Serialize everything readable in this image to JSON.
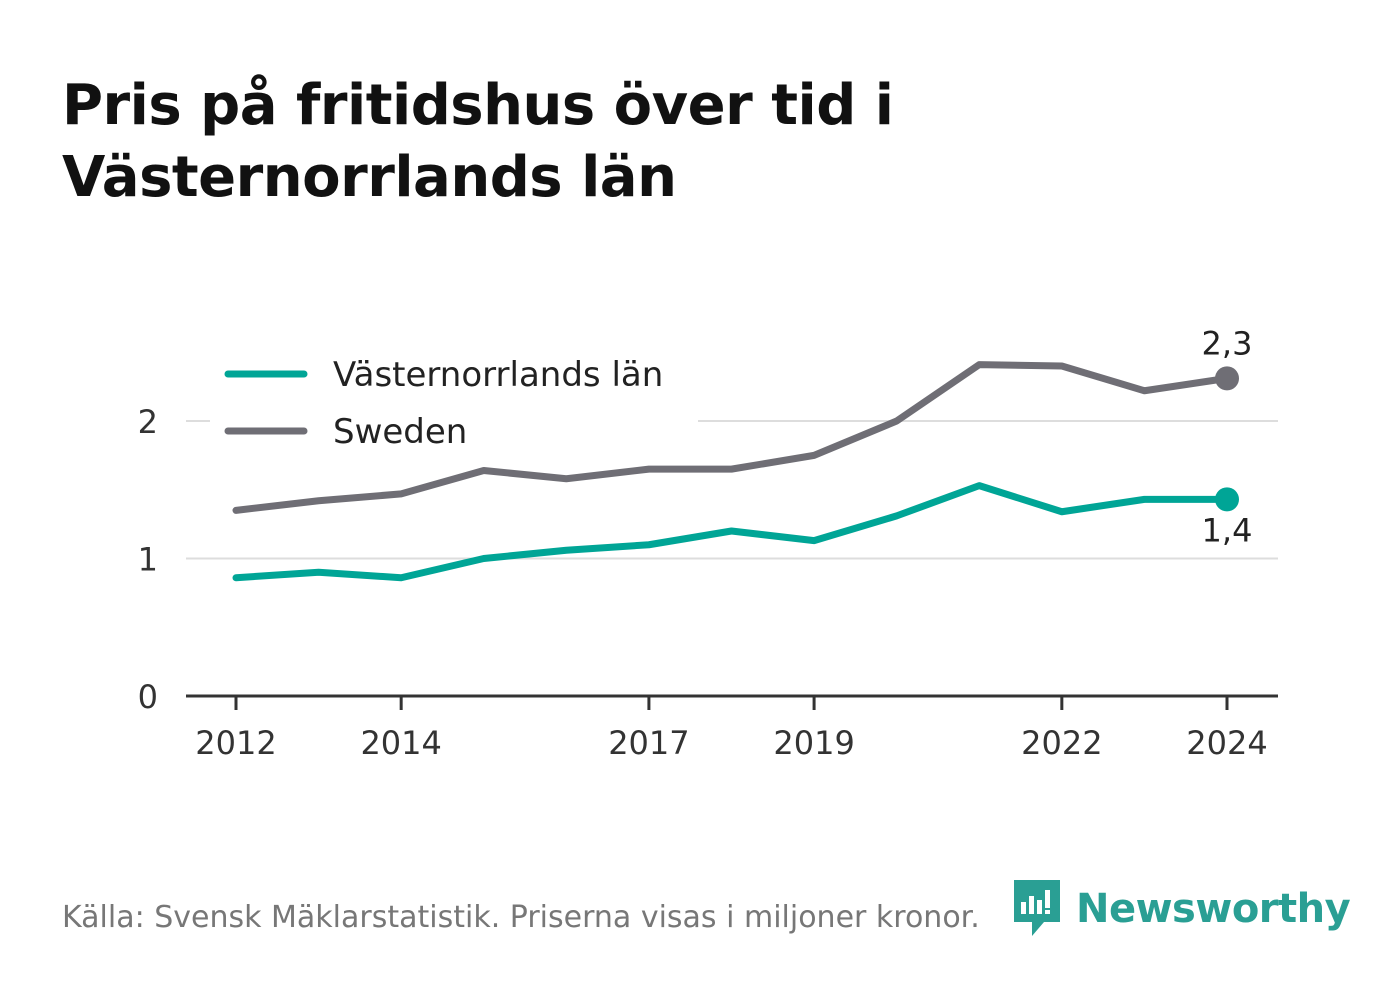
{
  "title": "Pris på fritidshus över tid i Västernorrlands län",
  "footer": {
    "source": "Källa: Svensk Mäklarstatistik. Priserna visas i miljoner kronor.",
    "brand": "Newsworthy"
  },
  "colors": {
    "vasternorrland": "#00a596",
    "sweden": "#6f6e75",
    "axis": "#333333",
    "grid": "#dddddd",
    "brand": "#2a9f94"
  },
  "icons": [
    "newsworthy-logo-icon"
  ],
  "chart_data": {
    "type": "line",
    "x": [
      2012,
      2013,
      2014,
      2015,
      2016,
      2017,
      2018,
      2019,
      2020,
      2021,
      2022,
      2023,
      2024
    ],
    "series": [
      {
        "name": "Västernorrlands län",
        "values": [
          0.86,
          0.9,
          0.86,
          1.0,
          1.06,
          1.1,
          1.2,
          1.13,
          1.31,
          1.53,
          1.34,
          1.43,
          1.43
        ],
        "end_label": "1,4"
      },
      {
        "name": "Sweden",
        "values": [
          1.35,
          1.42,
          1.47,
          1.64,
          1.58,
          1.65,
          1.65,
          1.75,
          2.0,
          2.41,
          2.4,
          2.22,
          2.31
        ],
        "end_label": "2,3"
      }
    ],
    "xticks": [
      2012,
      2014,
      2017,
      2019,
      2022,
      2024
    ],
    "xtick_labels": [
      "2012",
      "2014",
      "2017",
      "2019",
      "2022",
      "2024"
    ],
    "yticks": [
      0,
      1,
      2
    ],
    "ytick_labels": [
      "0",
      "1",
      "2"
    ],
    "xlim": [
      2012,
      2024
    ],
    "ylim": [
      0,
      2.6
    ],
    "grid": true,
    "legend_position": "top-left"
  }
}
